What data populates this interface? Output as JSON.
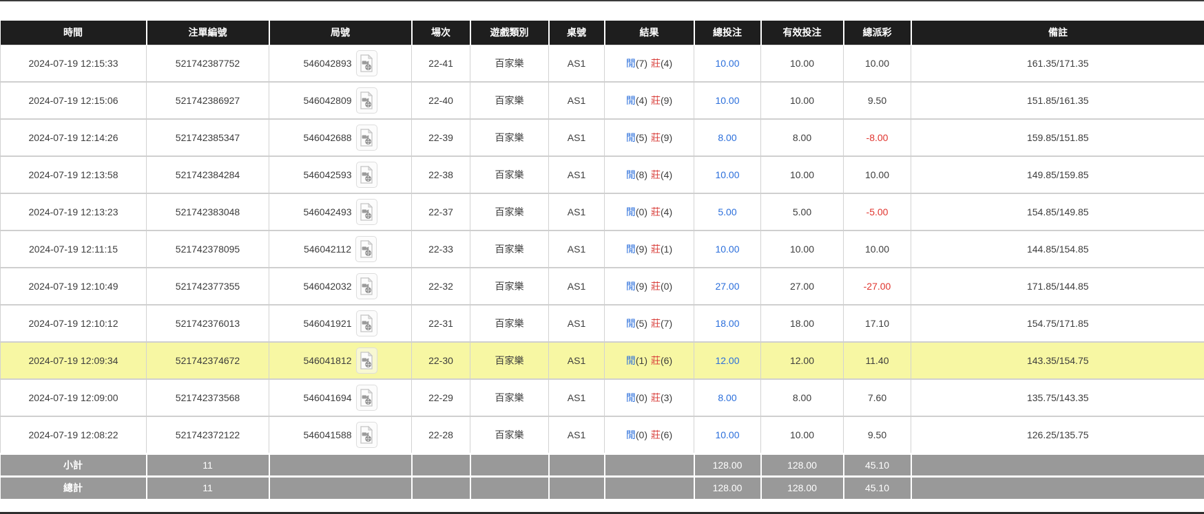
{
  "colors": {
    "header_bg": "#1e1e1e",
    "highlight_row": "#f7f7a3",
    "footer_bg": "#999999",
    "player_blue": "#2a6edb",
    "banker_red": "#d9413d",
    "total_bet_link_blue": "#2a6edb",
    "negative_red": "#e0342e"
  },
  "table": {
    "headers": [
      {
        "key": "time",
        "label": "時間"
      },
      {
        "key": "bet_id",
        "label": "注單編號"
      },
      {
        "key": "round_id",
        "label": "局號"
      },
      {
        "key": "session",
        "label": "場次"
      },
      {
        "key": "game_type",
        "label": "遊戲類別"
      },
      {
        "key": "table_no",
        "label": "桌號"
      },
      {
        "key": "result",
        "label": "結果"
      },
      {
        "key": "total_bet",
        "label": "總投注"
      },
      {
        "key": "valid_bet",
        "label": "有效投注"
      },
      {
        "key": "payout",
        "label": "總派彩"
      },
      {
        "key": "remark",
        "label": "備註"
      }
    ],
    "video_icon": "video-replay-icon",
    "rows": [
      {
        "time": "2024-07-19 12:15:33",
        "bet_id": "521742387752",
        "round_id": "546042893",
        "session": "22-41",
        "game_type": "百家樂",
        "table_no": "AS1",
        "result": {
          "player_label": "閒",
          "player_score": "(7)",
          "banker_label": "莊",
          "banker_score": "(4)"
        },
        "total_bet": "10.00",
        "valid_bet": "10.00",
        "payout": "10.00",
        "remark": "161.35/171.35",
        "highlighted": false
      },
      {
        "time": "2024-07-19 12:15:06",
        "bet_id": "521742386927",
        "round_id": "546042809",
        "session": "22-40",
        "game_type": "百家樂",
        "table_no": "AS1",
        "result": {
          "player_label": "閒",
          "player_score": "(4)",
          "banker_label": "莊",
          "banker_score": "(9)"
        },
        "total_bet": "10.00",
        "valid_bet": "10.00",
        "payout": "9.50",
        "remark": "151.85/161.35",
        "highlighted": false
      },
      {
        "time": "2024-07-19 12:14:26",
        "bet_id": "521742385347",
        "round_id": "546042688",
        "session": "22-39",
        "game_type": "百家樂",
        "table_no": "AS1",
        "result": {
          "player_label": "閒",
          "player_score": "(5)",
          "banker_label": "莊",
          "banker_score": "(9)"
        },
        "total_bet": "8.00",
        "valid_bet": "8.00",
        "payout": "-8.00",
        "remark": "159.85/151.85",
        "highlighted": false
      },
      {
        "time": "2024-07-19 12:13:58",
        "bet_id": "521742384284",
        "round_id": "546042593",
        "session": "22-38",
        "game_type": "百家樂",
        "table_no": "AS1",
        "result": {
          "player_label": "閒",
          "player_score": "(8)",
          "banker_label": "莊",
          "banker_score": "(4)"
        },
        "total_bet": "10.00",
        "valid_bet": "10.00",
        "payout": "10.00",
        "remark": "149.85/159.85",
        "highlighted": false
      },
      {
        "time": "2024-07-19 12:13:23",
        "bet_id": "521742383048",
        "round_id": "546042493",
        "session": "22-37",
        "game_type": "百家樂",
        "table_no": "AS1",
        "result": {
          "player_label": "閒",
          "player_score": "(0)",
          "banker_label": "莊",
          "banker_score": "(4)"
        },
        "total_bet": "5.00",
        "valid_bet": "5.00",
        "payout": "-5.00",
        "remark": "154.85/149.85",
        "highlighted": false
      },
      {
        "time": "2024-07-19 12:11:15",
        "bet_id": "521742378095",
        "round_id": "546042112",
        "session": "22-33",
        "game_type": "百家樂",
        "table_no": "AS1",
        "result": {
          "player_label": "閒",
          "player_score": "(9)",
          "banker_label": "莊",
          "banker_score": "(1)"
        },
        "total_bet": "10.00",
        "valid_bet": "10.00",
        "payout": "10.00",
        "remark": "144.85/154.85",
        "highlighted": false
      },
      {
        "time": "2024-07-19 12:10:49",
        "bet_id": "521742377355",
        "round_id": "546042032",
        "session": "22-32",
        "game_type": "百家樂",
        "table_no": "AS1",
        "result": {
          "player_label": "閒",
          "player_score": "(9)",
          "banker_label": "莊",
          "banker_score": "(0)"
        },
        "total_bet": "27.00",
        "valid_bet": "27.00",
        "payout": "-27.00",
        "remark": "171.85/144.85",
        "highlighted": false
      },
      {
        "time": "2024-07-19 12:10:12",
        "bet_id": "521742376013",
        "round_id": "546041921",
        "session": "22-31",
        "game_type": "百家樂",
        "table_no": "AS1",
        "result": {
          "player_label": "閒",
          "player_score": "(5)",
          "banker_label": "莊",
          "banker_score": "(7)"
        },
        "total_bet": "18.00",
        "valid_bet": "18.00",
        "payout": "17.10",
        "remark": "154.75/171.85",
        "highlighted": false
      },
      {
        "time": "2024-07-19 12:09:34",
        "bet_id": "521742374672",
        "round_id": "546041812",
        "session": "22-30",
        "game_type": "百家樂",
        "table_no": "AS1",
        "result": {
          "player_label": "閒",
          "player_score": "(1)",
          "banker_label": "莊",
          "banker_score": "(6)"
        },
        "total_bet": "12.00",
        "valid_bet": "12.00",
        "payout": "11.40",
        "remark": "143.35/154.75",
        "highlighted": true
      },
      {
        "time": "2024-07-19 12:09:00",
        "bet_id": "521742373568",
        "round_id": "546041694",
        "session": "22-29",
        "game_type": "百家樂",
        "table_no": "AS1",
        "result": {
          "player_label": "閒",
          "player_score": "(0)",
          "banker_label": "莊",
          "banker_score": "(3)"
        },
        "total_bet": "8.00",
        "valid_bet": "8.00",
        "payout": "7.60",
        "remark": "135.75/143.35",
        "highlighted": false
      },
      {
        "time": "2024-07-19 12:08:22",
        "bet_id": "521742372122",
        "round_id": "546041588",
        "session": "22-28",
        "game_type": "百家樂",
        "table_no": "AS1",
        "result": {
          "player_label": "閒",
          "player_score": "(0)",
          "banker_label": "莊",
          "banker_score": "(6)"
        },
        "total_bet": "10.00",
        "valid_bet": "10.00",
        "payout": "9.50",
        "remark": "126.25/135.75",
        "highlighted": false
      }
    ],
    "footer": [
      {
        "label": "小計",
        "count": "11",
        "total_bet": "128.00",
        "valid_bet": "128.00",
        "payout": "45.10"
      },
      {
        "label": "總計",
        "count": "11",
        "total_bet": "128.00",
        "valid_bet": "128.00",
        "payout": "45.10"
      }
    ]
  }
}
